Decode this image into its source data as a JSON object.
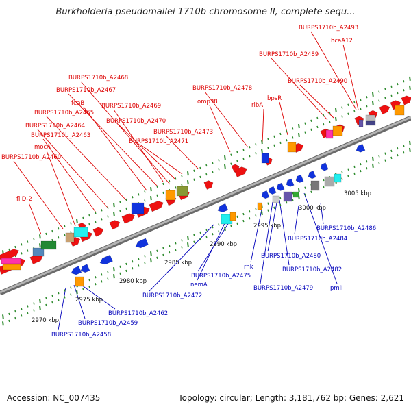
{
  "title": "Burkholderia pseudomallei 1710b chromosome II, complete sequ...",
  "footer": {
    "accession": "Accession: NC_007435",
    "summary": "Topology: circular; Length: 3,181,762 bp; Genes: 2,621"
  },
  "colors": {
    "backbone": "#8a8a8a",
    "top_label": "#dd0000",
    "bottom_label": "#0000bb",
    "forward_gene": "#ee1111",
    "reverse_gene": "#1133dd",
    "tick_green": "#2e8b2e",
    "other_gene_orange": "#ff9900",
    "other_gene_cyan": "#22eeee",
    "other_gene_gray": "#999999"
  },
  "scale_labels": [
    "2970 kbp",
    "2975 kbp",
    "2980 kbp",
    "2985 kbp",
    "2990 kbp",
    "2995 kbp",
    "3000 kbp",
    "3005 kbp"
  ],
  "top_labels": [
    "BURPS1710b_A2493",
    "hcaA12",
    "BURPS1710b_A2489",
    "BURPS1710b_A2490",
    "bpsR",
    "ribA",
    "BURPS1710b_A2478",
    "omp38",
    "BURPS1710b_A2468",
    "BURPS1710b_A2467",
    "feaB",
    "BURPS1710b_A2469",
    "BURPS1710b_A2465",
    "BURPS1710b_A2470",
    "BURPS1710b_A2464",
    "BURPS1710b_A2473",
    "BURPS1710b_A2463",
    "BURPS1710b_A2471",
    "mocA",
    "BURPS1710b_A2460",
    "fliD-2"
  ],
  "bottom_labels": [
    "BURPS1710b_A2486",
    "BURPS1710b_A2484",
    "BURPS1710b_A2480",
    "BURPS1710b_A2482",
    "BURPS1710b_A2479",
    "pmlI",
    "rnk",
    "BURPS1710b_A2475",
    "nemA",
    "BURPS1710b_A2472",
    "BURPS1710b_A2462",
    "BURPS1710b_A2459",
    "BURPS1710b_A2458"
  ]
}
